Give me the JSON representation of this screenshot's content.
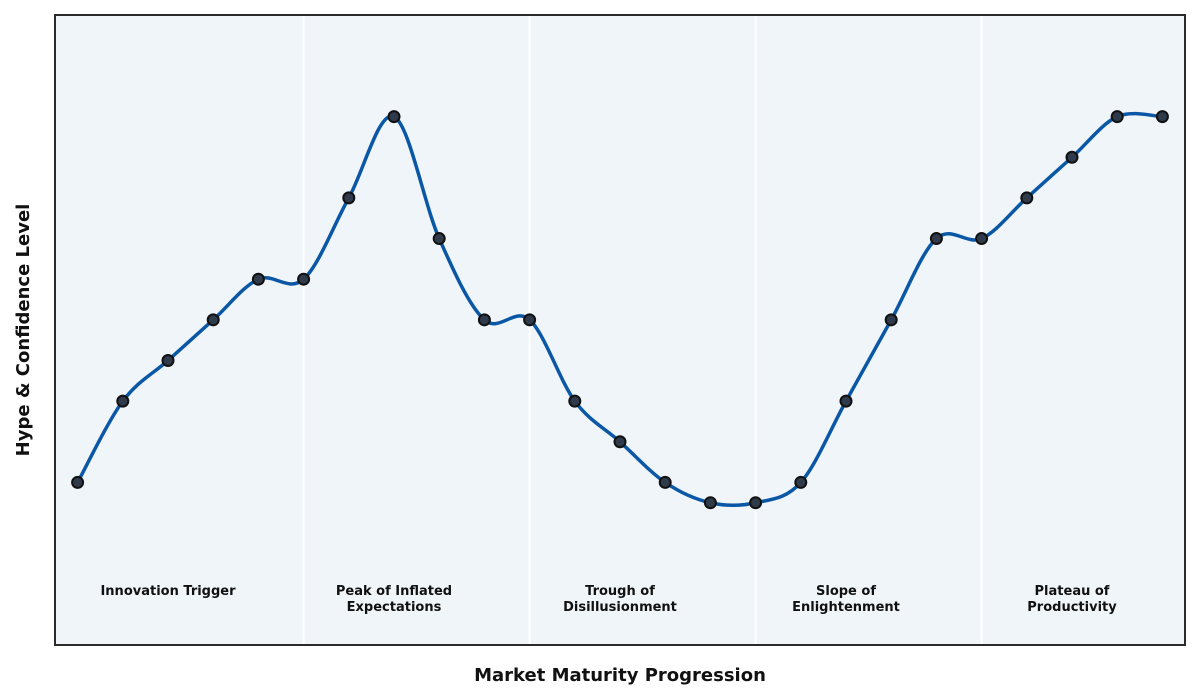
{
  "chart_data": {
    "type": "line",
    "title": "",
    "xlabel": "Market Maturity Progression",
    "ylabel": "Hype & Confidence Level",
    "xlim": [
      -0.5,
      24.5
    ],
    "ylim": [
      0,
      15.5
    ],
    "grid": "vertical phase dividers only",
    "legend": "none",
    "phases": [
      {
        "label": [
          "Innovation Trigger"
        ],
        "center": 2
      },
      {
        "label": [
          "Peak of Inflated",
          "Expectations"
        ],
        "center": 7
      },
      {
        "label": [
          "Trough of",
          "Disillusionment"
        ],
        "center": 12
      },
      {
        "label": [
          "Slope of",
          "Enlightenment"
        ],
        "center": 17
      },
      {
        "label": [
          "Plateau of",
          "Productivity"
        ],
        "center": 22
      }
    ],
    "phase_dividers": [
      5,
      10,
      15,
      20
    ],
    "series": [
      {
        "x": [
          0,
          1,
          2,
          3,
          4,
          5,
          6,
          7,
          8,
          9,
          10,
          11,
          12,
          13,
          14,
          15,
          16,
          17,
          18,
          19,
          20,
          21,
          22,
          23,
          24
        ],
        "values": [
          4.0,
          6.0,
          7.0,
          8.0,
          9.0,
          9.0,
          11.0,
          13.0,
          10.0,
          8.0,
          8.0,
          6.0,
          5.0,
          4.0,
          3.5,
          3.5,
          4.0,
          6.0,
          8.0,
          10.0,
          10.0,
          11.0,
          12.0,
          13.0,
          13.0
        ]
      }
    ],
    "colors": {
      "line": "#0a58a5",
      "marker_fill": "#2f3a4a",
      "marker_edge": "#111111",
      "plot_background": "#f0f5fa",
      "divider": "#ffffff",
      "frame": "#2b2b2b"
    }
  }
}
